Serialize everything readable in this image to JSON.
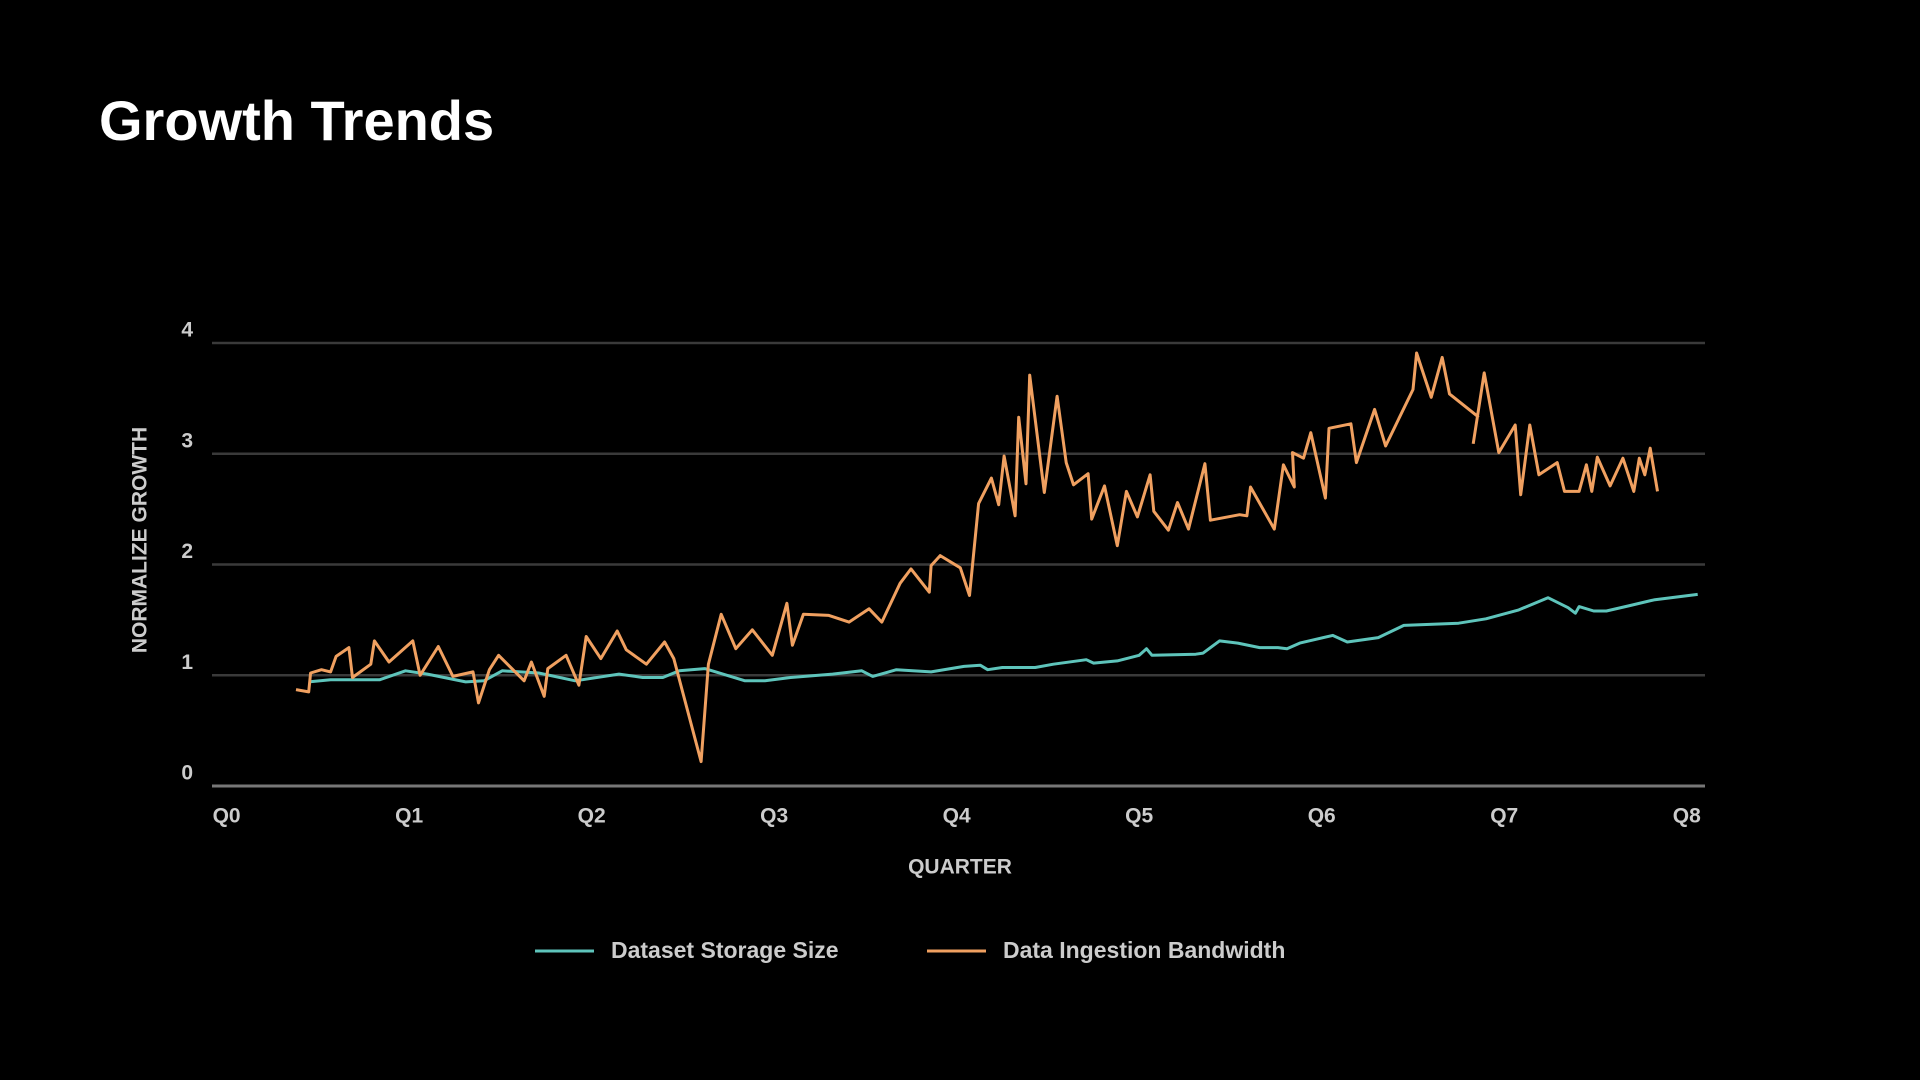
{
  "chart_data": {
    "type": "line",
    "title": "Growth Trends",
    "xlabel": "QUARTER",
    "ylabel": "NORMALIZE GROWTH",
    "xlim": [
      -0.08,
      8.1
    ],
    "ylim": [
      0,
      4
    ],
    "xticks": [
      {
        "value": 0,
        "label": "Q0"
      },
      {
        "value": 1,
        "label": "Q1"
      },
      {
        "value": 2,
        "label": "Q2"
      },
      {
        "value": 3,
        "label": "Q3"
      },
      {
        "value": 4,
        "label": "Q4"
      },
      {
        "value": 5,
        "label": "Q5"
      },
      {
        "value": 6,
        "label": "Q6"
      },
      {
        "value": 7,
        "label": "Q7"
      },
      {
        "value": 8,
        "label": "Q8"
      }
    ],
    "yticks": [
      0,
      1,
      2,
      3,
      4
    ],
    "grid": true,
    "legend": "bottom",
    "series": [
      {
        "name": "Dataset Storage Size",
        "color": "#5ec4bb",
        "x": [
          0.45,
          0.57,
          0.84,
          0.98,
          1.1,
          1.31,
          1.41,
          1.51,
          1.71,
          1.91,
          2.15,
          2.28,
          2.39,
          2.48,
          2.62,
          2.84,
          2.95,
          3.09,
          3.32,
          3.48,
          3.54,
          3.67,
          3.86,
          4.04,
          4.13,
          4.17,
          4.25,
          4.43,
          4.53,
          4.71,
          4.75,
          4.88,
          5.0,
          5.04,
          5.07,
          5.31,
          5.35,
          5.44,
          5.54,
          5.66,
          5.76,
          5.81,
          5.88,
          6.06,
          6.14,
          6.31,
          6.45,
          6.75,
          6.9,
          7.08,
          7.24,
          7.35,
          7.39,
          7.41,
          7.49,
          7.56,
          7.69,
          7.82,
          8.06
        ],
        "values": [
          0.94,
          0.96,
          0.96,
          1.04,
          1.01,
          0.94,
          0.95,
          1.04,
          1.02,
          0.95,
          1.01,
          0.98,
          0.98,
          1.04,
          1.06,
          0.95,
          0.95,
          0.98,
          1.01,
          1.04,
          0.99,
          1.05,
          1.03,
          1.08,
          1.09,
          1.05,
          1.07,
          1.07,
          1.1,
          1.14,
          1.11,
          1.13,
          1.18,
          1.24,
          1.18,
          1.19,
          1.2,
          1.31,
          1.29,
          1.25,
          1.25,
          1.24,
          1.29,
          1.36,
          1.3,
          1.34,
          1.45,
          1.47,
          1.51,
          1.59,
          1.7,
          1.61,
          1.56,
          1.62,
          1.58,
          1.58,
          1.63,
          1.68,
          1.73
        ]
      },
      {
        "name": "Data Ingestion Bandwidth",
        "color": "#f0a060",
        "x": [
          0.38,
          0.45,
          0.46,
          0.52,
          0.57,
          0.6,
          0.67,
          0.69,
          0.79,
          0.81,
          0.89,
          1.02,
          1.06,
          1.16,
          1.24,
          1.35,
          1.38,
          1.44,
          1.49,
          1.63,
          1.67,
          1.74,
          1.76,
          1.86,
          1.93,
          1.97,
          2.05,
          2.14,
          2.19,
          2.3,
          2.4,
          2.45,
          2.6,
          2.64,
          2.71,
          2.79,
          2.88,
          2.99,
          3.07,
          3.1,
          3.16,
          3.3,
          3.41,
          3.52,
          3.59,
          3.69,
          3.75,
          3.85,
          3.86,
          3.91,
          4.02,
          4.07,
          4.12,
          4.19,
          4.23,
          4.26,
          4.32,
          4.34,
          4.38,
          4.4,
          4.48,
          4.55,
          4.6,
          4.64,
          4.72,
          4.74,
          4.81,
          4.88,
          4.93,
          4.99,
          5.06,
          5.08,
          5.16,
          5.21,
          5.27,
          5.36,
          5.39,
          5.55,
          5.59,
          5.61,
          5.74,
          5.79,
          5.85,
          5.84,
          5.9,
          5.94,
          6.02,
          6.04,
          6.16,
          6.19,
          6.29,
          6.35,
          6.5,
          6.52,
          6.6,
          6.66,
          6.7,
          6.86,
          null,
          6.83,
          6.89,
          6.97,
          7.06,
          7.09,
          7.14,
          7.19,
          7.29,
          7.33,
          7.41,
          7.45,
          7.48,
          7.51,
          7.58,
          7.65,
          7.71,
          7.74,
          7.77,
          7.8,
          7.84
        ],
        "values": [
          0.87,
          0.85,
          1.02,
          1.05,
          1.03,
          1.17,
          1.25,
          0.98,
          1.1,
          1.31,
          1.12,
          1.31,
          1.0,
          1.26,
          0.99,
          1.03,
          0.75,
          1.05,
          1.18,
          0.95,
          1.12,
          0.81,
          1.06,
          1.18,
          0.91,
          1.35,
          1.15,
          1.4,
          1.23,
          1.1,
          1.3,
          1.15,
          0.22,
          1.1,
          1.55,
          1.24,
          1.41,
          1.18,
          1.65,
          1.27,
          1.55,
          1.54,
          1.48,
          1.6,
          1.48,
          1.83,
          1.96,
          1.75,
          1.99,
          2.08,
          1.97,
          1.72,
          2.55,
          2.78,
          2.54,
          2.98,
          2.44,
          3.33,
          2.73,
          3.71,
          2.65,
          3.52,
          2.92,
          2.72,
          2.82,
          2.41,
          2.71,
          2.17,
          2.66,
          2.43,
          2.81,
          2.48,
          2.31,
          2.56,
          2.32,
          2.91,
          2.4,
          2.45,
          2.44,
          2.7,
          2.32,
          2.9,
          2.7,
          3.01,
          2.96,
          3.19,
          2.6,
          3.23,
          3.27,
          2.92,
          3.4,
          3.07,
          3.58,
          3.91,
          3.51,
          3.87,
          3.54,
          3.33,
          null,
          3.09,
          3.73,
          3.01,
          3.26,
          2.63,
          3.26,
          2.81,
          2.92,
          2.66,
          2.66,
          2.9,
          2.66,
          2.97,
          2.71,
          2.96,
          2.66,
          2.96,
          2.81,
          3.05,
          2.66
        ]
      }
    ]
  }
}
